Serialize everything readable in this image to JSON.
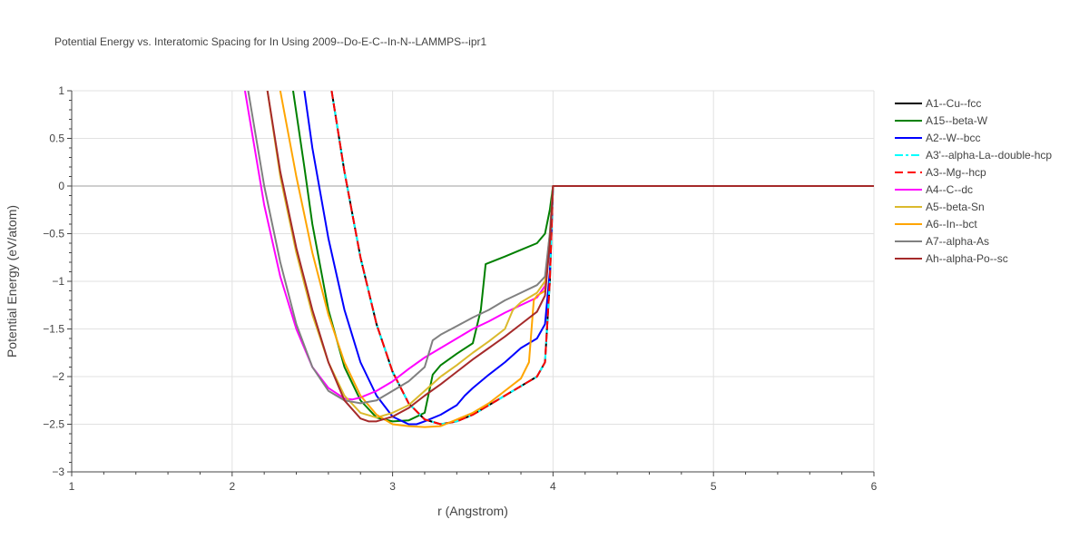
{
  "chart_data": {
    "type": "line",
    "title": "Potential Energy vs. Interatomic Spacing for In Using 2009--Do-E-C--In-N--LAMMPS--ipr1",
    "xlabel": "r (Angstrom)",
    "ylabel": "Potential Energy (eV/atom)",
    "xlim": [
      1,
      6
    ],
    "ylim": [
      -3,
      1
    ],
    "x_ticks": [
      "1",
      "2",
      "3",
      "4",
      "5",
      "6"
    ],
    "y_ticks": [
      "1",
      "0.5",
      "0",
      "−0.5",
      "−1",
      "−1.5",
      "−2",
      "−2.5",
      "−3"
    ],
    "grid": true,
    "legend_position": "right",
    "series": [
      {
        "name": "A1--Cu--fcc",
        "color": "#000000",
        "dash": "solid",
        "x": [
          2.62,
          2.7,
          2.8,
          2.9,
          3.0,
          3.1,
          3.2,
          3.3,
          3.4,
          3.5,
          3.6,
          3.7,
          3.8,
          3.9,
          3.95,
          3.98,
          4.0,
          4.5,
          5.0,
          6.0
        ],
        "y": [
          1.0,
          0.15,
          -0.75,
          -1.45,
          -1.95,
          -2.28,
          -2.45,
          -2.5,
          -2.47,
          -2.4,
          -2.3,
          -2.2,
          -2.1,
          -2.0,
          -1.85,
          -1.0,
          0,
          0,
          0,
          0
        ]
      },
      {
        "name": "A15--beta-W",
        "color": "#008000",
        "dash": "solid",
        "x": [
          2.38,
          2.45,
          2.5,
          2.6,
          2.7,
          2.8,
          2.9,
          3.0,
          3.1,
          3.2,
          3.25,
          3.3,
          3.4,
          3.5,
          3.55,
          3.58,
          3.7,
          3.8,
          3.9,
          3.95,
          3.98,
          4.0,
          4.5,
          5.0,
          6.0
        ],
        "y": [
          1.0,
          0.2,
          -0.4,
          -1.3,
          -1.9,
          -2.25,
          -2.43,
          -2.47,
          -2.46,
          -2.38,
          -1.98,
          -1.88,
          -1.76,
          -1.65,
          -1.3,
          -0.82,
          -0.74,
          -0.67,
          -0.6,
          -0.5,
          -0.25,
          0,
          0,
          0,
          0
        ]
      },
      {
        "name": "A2--W--bcc",
        "color": "#0000ff",
        "dash": "solid",
        "x": [
          2.45,
          2.5,
          2.6,
          2.7,
          2.8,
          2.9,
          3.0,
          3.1,
          3.15,
          3.2,
          3.3,
          3.4,
          3.45,
          3.5,
          3.6,
          3.7,
          3.8,
          3.9,
          3.95,
          3.98,
          4.0,
          4.5,
          5.0,
          6.0
        ],
        "y": [
          1.0,
          0.4,
          -0.55,
          -1.3,
          -1.85,
          -2.2,
          -2.42,
          -2.5,
          -2.5,
          -2.47,
          -2.4,
          -2.3,
          -2.2,
          -2.12,
          -1.98,
          -1.85,
          -1.7,
          -1.6,
          -1.45,
          -0.9,
          0,
          0,
          0,
          0
        ]
      },
      {
        "name": "A3'--alpha-La--double-hcp",
        "color": "#00ffff",
        "dash": "dashdot",
        "x": [
          2.62,
          2.7,
          2.8,
          2.9,
          3.0,
          3.1,
          3.2,
          3.3,
          3.4,
          3.5,
          3.6,
          3.7,
          3.8,
          3.9,
          3.95,
          3.98,
          4.0,
          4.5,
          5.0,
          6.0
        ],
        "y": [
          1.0,
          0.15,
          -0.75,
          -1.45,
          -1.95,
          -2.28,
          -2.45,
          -2.5,
          -2.47,
          -2.4,
          -2.3,
          -2.2,
          -2.1,
          -2.0,
          -1.85,
          -1.0,
          0,
          0,
          0,
          0
        ]
      },
      {
        "name": "A3--Mg--hcp",
        "color": "#ff0000",
        "dash": "dash",
        "x": [
          2.62,
          2.7,
          2.8,
          2.9,
          3.0,
          3.1,
          3.2,
          3.3,
          3.4,
          3.5,
          3.6,
          3.7,
          3.8,
          3.9,
          3.95,
          3.98,
          4.0,
          4.5,
          5.0,
          6.0
        ],
        "y": [
          1.0,
          0.15,
          -0.75,
          -1.45,
          -1.95,
          -2.28,
          -2.45,
          -2.5,
          -2.47,
          -2.4,
          -2.3,
          -2.2,
          -2.1,
          -2.0,
          -1.85,
          -1.0,
          0,
          0,
          0,
          0
        ]
      },
      {
        "name": "A4--C--dc",
        "color": "#ff00ff",
        "dash": "solid",
        "x": [
          2.08,
          2.15,
          2.2,
          2.3,
          2.4,
          2.5,
          2.6,
          2.7,
          2.75,
          2.8,
          2.9,
          3.0,
          3.1,
          3.2,
          3.3,
          3.4,
          3.5,
          3.6,
          3.7,
          3.8,
          3.9,
          3.95,
          3.98,
          4.0,
          4.5,
          5.0,
          6.0
        ],
        "y": [
          1.0,
          0.3,
          -0.2,
          -0.95,
          -1.5,
          -1.9,
          -2.12,
          -2.23,
          -2.24,
          -2.22,
          -2.15,
          -2.05,
          -1.92,
          -1.8,
          -1.7,
          -1.6,
          -1.5,
          -1.42,
          -1.33,
          -1.25,
          -1.17,
          -1.05,
          -0.6,
          0,
          0,
          0,
          0
        ]
      },
      {
        "name": "A5--beta-Sn",
        "color": "#dbba2d",
        "dash": "solid",
        "x": [
          2.22,
          2.3,
          2.4,
          2.5,
          2.6,
          2.7,
          2.8,
          2.9,
          3.0,
          3.1,
          3.2,
          3.3,
          3.4,
          3.5,
          3.6,
          3.7,
          3.75,
          3.8,
          3.9,
          3.95,
          3.98,
          4.0,
          4.5,
          5.0,
          6.0
        ],
        "y": [
          1.0,
          0.1,
          -0.7,
          -1.35,
          -1.85,
          -2.2,
          -2.38,
          -2.43,
          -2.38,
          -2.3,
          -2.15,
          -2.0,
          -1.88,
          -1.75,
          -1.63,
          -1.5,
          -1.3,
          -1.22,
          -1.12,
          -1.0,
          -0.5,
          0,
          0,
          0,
          0
        ]
      },
      {
        "name": "A6--In--bct",
        "color": "#ffa500",
        "dash": "solid",
        "x": [
          2.3,
          2.35,
          2.4,
          2.5,
          2.6,
          2.7,
          2.8,
          2.9,
          3.0,
          3.1,
          3.2,
          3.3,
          3.4,
          3.5,
          3.6,
          3.7,
          3.8,
          3.85,
          3.88,
          3.9,
          3.95,
          3.98,
          4.0,
          4.5,
          5.0,
          6.0
        ],
        "y": [
          1.0,
          0.55,
          0.1,
          -0.7,
          -1.35,
          -1.85,
          -2.2,
          -2.4,
          -2.5,
          -2.52,
          -2.53,
          -2.52,
          -2.45,
          -2.38,
          -2.28,
          -2.15,
          -2.02,
          -1.85,
          -1.2,
          -1.15,
          -1.1,
          -0.6,
          0,
          0,
          0,
          0
        ]
      },
      {
        "name": "A7--alpha-As",
        "color": "#808080",
        "dash": "solid",
        "x": [
          2.1,
          2.15,
          2.2,
          2.3,
          2.4,
          2.5,
          2.6,
          2.7,
          2.8,
          2.9,
          3.0,
          3.1,
          3.2,
          3.25,
          3.3,
          3.4,
          3.5,
          3.6,
          3.7,
          3.8,
          3.9,
          3.95,
          3.98,
          4.0,
          4.5,
          5.0,
          6.0
        ],
        "y": [
          1.0,
          0.5,
          0.0,
          -0.8,
          -1.45,
          -1.9,
          -2.15,
          -2.25,
          -2.28,
          -2.25,
          -2.15,
          -2.05,
          -1.9,
          -1.62,
          -1.56,
          -1.47,
          -1.38,
          -1.3,
          -1.2,
          -1.12,
          -1.04,
          -0.95,
          -0.5,
          0,
          0,
          0,
          0
        ]
      },
      {
        "name": "Ah--alpha-Po--sc",
        "color": "#a52a2a",
        "dash": "solid",
        "x": [
          2.22,
          2.3,
          2.4,
          2.5,
          2.6,
          2.7,
          2.8,
          2.85,
          2.9,
          3.0,
          3.1,
          3.2,
          3.3,
          3.4,
          3.5,
          3.6,
          3.7,
          3.8,
          3.9,
          3.95,
          3.98,
          4.0,
          4.5,
          5.0,
          6.0
        ],
        "y": [
          1.0,
          0.15,
          -0.65,
          -1.3,
          -1.85,
          -2.25,
          -2.44,
          -2.47,
          -2.47,
          -2.42,
          -2.33,
          -2.2,
          -2.08,
          -1.95,
          -1.82,
          -1.7,
          -1.58,
          -1.45,
          -1.32,
          -1.15,
          -0.6,
          0,
          0,
          0,
          0
        ]
      }
    ]
  }
}
